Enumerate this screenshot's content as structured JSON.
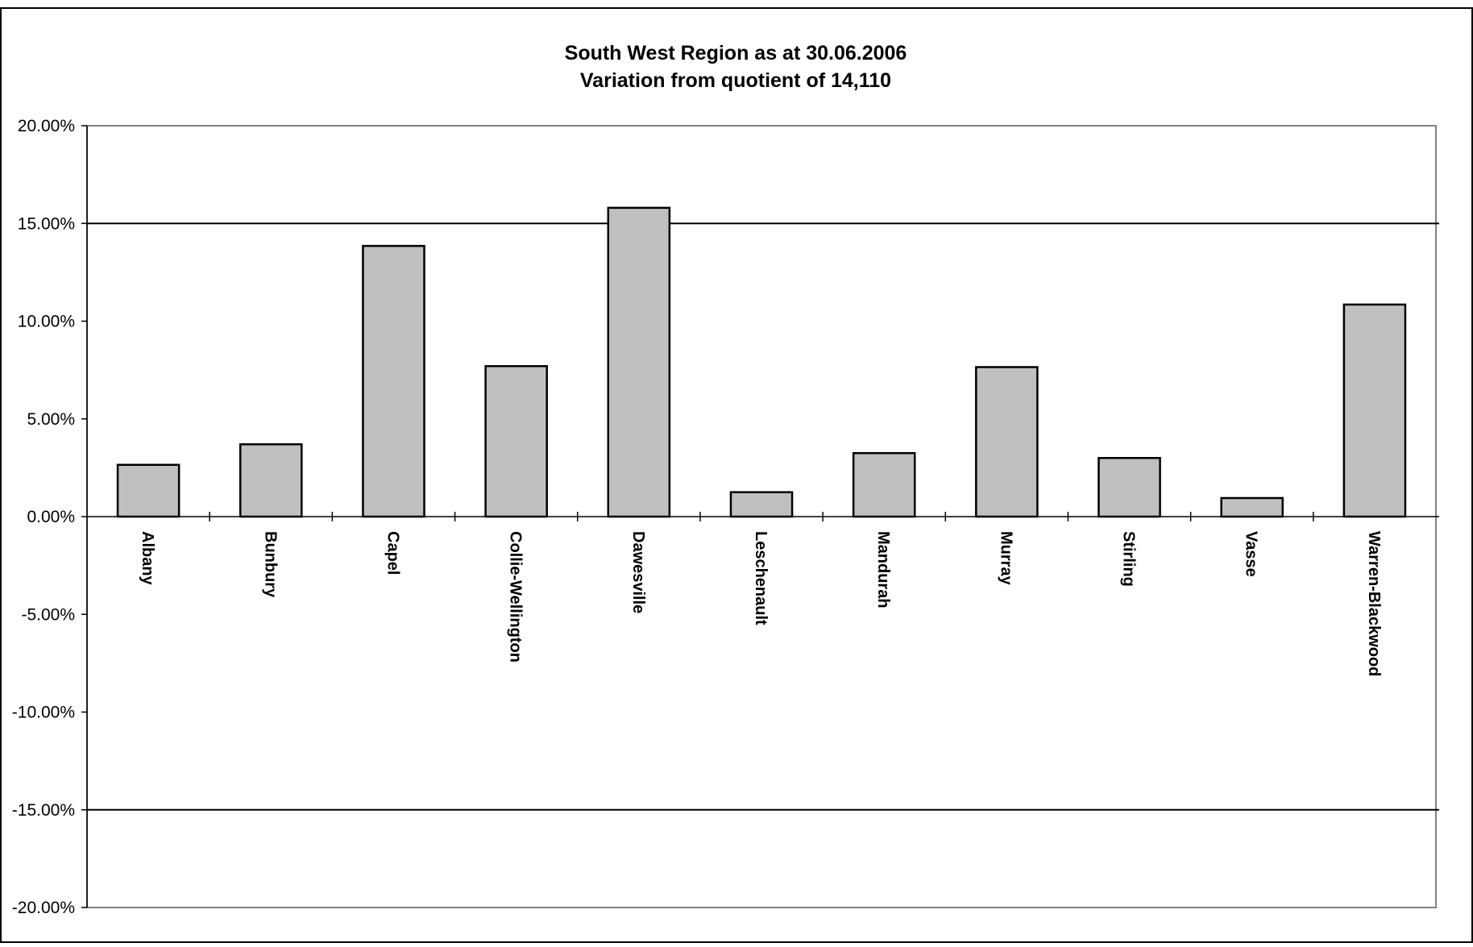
{
  "chart_data": {
    "type": "bar",
    "title_lines": [
      "South West Region as at 30.06.2006",
      "Variation from quotient of 14,110"
    ],
    "xlabel": "",
    "ylabel": "",
    "categories": [
      "Albany",
      "Bunbury",
      "Capel",
      "Collie-Wellington",
      "Dawesville",
      "Leschenault",
      "Mandurah",
      "Murray",
      "Stirling",
      "Vasse",
      "Warren-Blackwood"
    ],
    "values": [
      2.65,
      3.7,
      13.85,
      7.7,
      15.8,
      1.25,
      3.25,
      7.65,
      3.0,
      0.95,
      10.85
    ],
    "value_format": "percent",
    "ylim": [
      -20,
      20
    ],
    "yticks": [
      20,
      15,
      10,
      5,
      0,
      -5,
      -10,
      -15,
      -20
    ],
    "ytick_labels": [
      "20.00%",
      "15.00%",
      "10.00%",
      "5.00%",
      "0.00%",
      "-5.00%",
      "-10.00%",
      "-15.00%",
      "-20.00%"
    ],
    "reference_lines": [
      15,
      -15
    ],
    "grid": false,
    "legend": "none",
    "colors": {
      "bar_fill": "#c0c0c0",
      "bar_stroke": "#000000",
      "plot_border": "#808080",
      "reference_line": "#000000",
      "background": "#ffffff"
    }
  }
}
